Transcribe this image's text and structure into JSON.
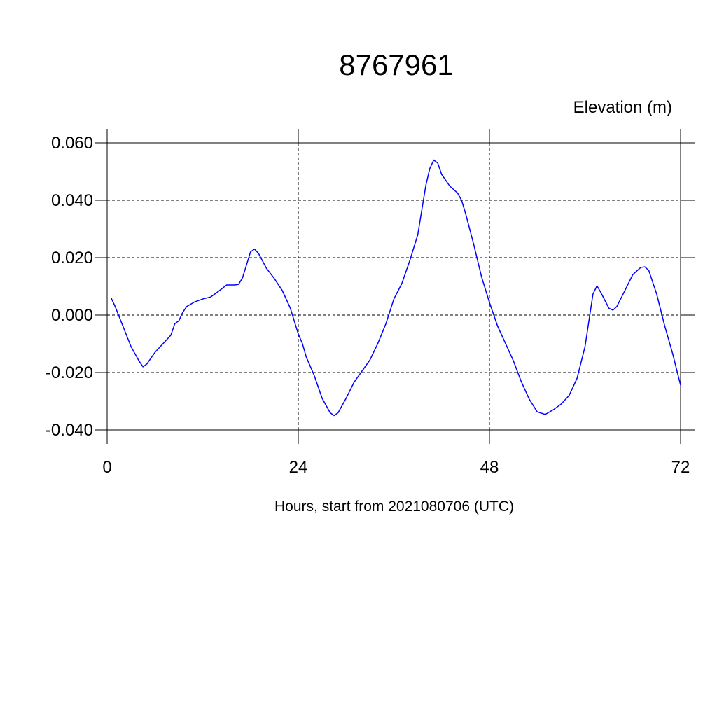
{
  "chart_data": {
    "type": "line",
    "title": "8767961",
    "subtitle": "Elevation (m)",
    "x_label": "Hours, start from 2021080706 (UTC)",
    "x": [
      0.5,
      1,
      2,
      3,
      4,
      4.5,
      5,
      6,
      7,
      8,
      8.5,
      9,
      9.5,
      10,
      11,
      12,
      13,
      14,
      15,
      16,
      16.5,
      17,
      18,
      18.5,
      19,
      20,
      21,
      22,
      23,
      24,
      24.5,
      25,
      26,
      27,
      28,
      28.5,
      29,
      30,
      31,
      32,
      33,
      34,
      35,
      36,
      37,
      38,
      39,
      40,
      40.5,
      41,
      41.5,
      42,
      43,
      44,
      44.5,
      45,
      46,
      47,
      48,
      49,
      50,
      51,
      52,
      53,
      54,
      55,
      56,
      57,
      58,
      59,
      60,
      61,
      61.5,
      62,
      63,
      63.5,
      64,
      65,
      66,
      67,
      67.5,
      68,
      69,
      70,
      71,
      72
    ],
    "series": [
      {
        "name": "Elevation",
        "color": "#0000ff",
        "values": [
          0.006,
          0.003,
          -0.004,
          -0.011,
          -0.016,
          -0.018,
          -0.017,
          -0.013,
          -0.01,
          -0.007,
          -0.003,
          -0.002,
          0.001,
          0.003,
          0.0046,
          0.0056,
          0.0063,
          0.0083,
          0.0105,
          0.0105,
          0.0107,
          0.013,
          0.022,
          0.023,
          0.0215,
          0.0163,
          0.0127,
          0.0085,
          0.0024,
          -0.0066,
          -0.0098,
          -0.0146,
          -0.021,
          -0.029,
          -0.034,
          -0.035,
          -0.034,
          -0.029,
          -0.0234,
          -0.0195,
          -0.0156,
          -0.0098,
          -0.003,
          0.0056,
          0.011,
          0.019,
          0.028,
          0.045,
          0.051,
          0.054,
          0.053,
          0.049,
          0.045,
          0.0425,
          0.04,
          0.0354,
          0.0249,
          0.0134,
          0.0044,
          -0.0037,
          -0.0098,
          -0.0159,
          -0.0232,
          -0.0293,
          -0.0337,
          -0.0346,
          -0.033,
          -0.031,
          -0.028,
          -0.022,
          -0.011,
          0.0073,
          0.0102,
          0.0078,
          0.0024,
          0.0017,
          0.003,
          0.0085,
          0.0141,
          0.0166,
          0.0168,
          0.0156,
          0.0073,
          -0.0037,
          -0.0134,
          -0.0244
        ]
      }
    ],
    "xlim": [
      0,
      72
    ],
    "xticks": [
      0,
      24,
      48,
      72
    ],
    "ylim": [
      -0.04,
      0.06
    ],
    "yticks": [
      {
        "value": -0.04,
        "label": "-0.040"
      },
      {
        "value": -0.02,
        "label": "-0.020"
      },
      {
        "value": 0,
        "label": "0.000"
      },
      {
        "value": 0.02,
        "label": "0.020"
      },
      {
        "value": 0.04,
        "label": "0.040"
      },
      {
        "value": 0.06,
        "label": "0.060"
      }
    ],
    "grid": true
  }
}
